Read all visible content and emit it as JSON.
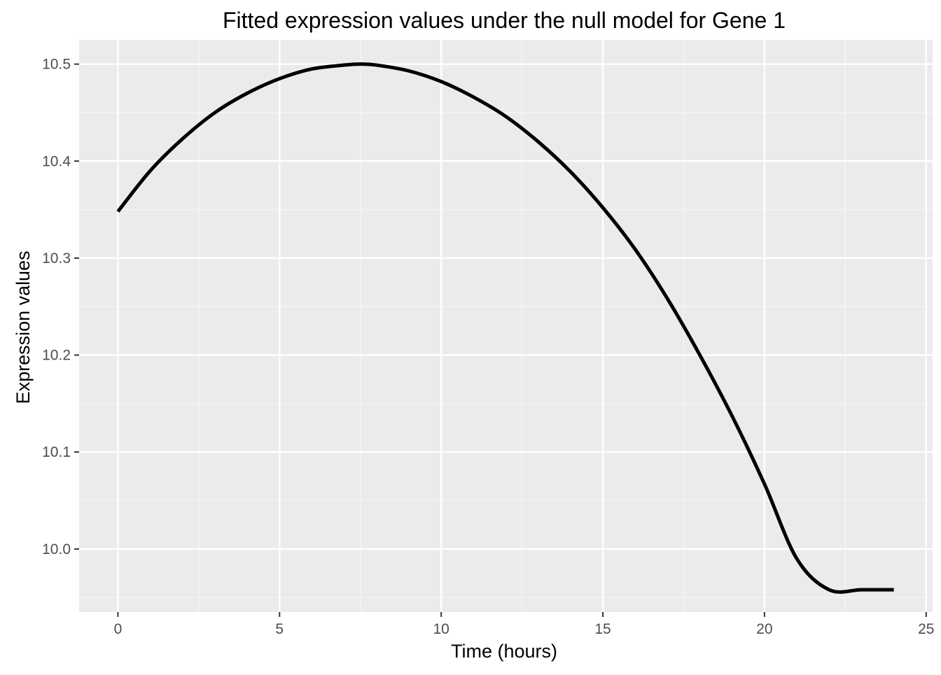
{
  "chart_data": {
    "type": "line",
    "title": "Fitted expression values under the null model for Gene 1",
    "xlabel": "Time (hours)",
    "ylabel": "Expression values",
    "xlim": [
      -1.2,
      25.2
    ],
    "ylim": [
      9.935,
      10.525
    ],
    "x_ticks": [
      0,
      5,
      10,
      15,
      20,
      25
    ],
    "x_tick_labels": [
      "0",
      "5",
      "10",
      "15",
      "20",
      "25"
    ],
    "y_ticks": [
      10.0,
      10.1,
      10.2,
      10.3,
      10.4,
      10.5
    ],
    "y_tick_labels": [
      "10.0",
      "10.1",
      "10.2",
      "10.3",
      "10.4",
      "10.5"
    ],
    "grid": true,
    "legend": "none",
    "series": [
      {
        "x": [
          0,
          1,
          2,
          3,
          4,
          5,
          6,
          7,
          7.5,
          8,
          9,
          10,
          11,
          12,
          13,
          14,
          15,
          16,
          17,
          18,
          19,
          20,
          21,
          22,
          23,
          24
        ],
        "y": [
          10.348,
          10.39,
          10.423,
          10.45,
          10.47,
          10.485,
          10.495,
          10.499,
          10.5,
          10.499,
          10.493,
          10.482,
          10.466,
          10.446,
          10.42,
          10.389,
          10.352,
          10.309,
          10.258,
          10.2,
          10.137,
          10.067,
          9.99,
          9.958,
          9.958,
          9.958
        ]
      }
    ]
  },
  "colors": {
    "panel_background": "#ebebeb",
    "grid_major": "#ffffff",
    "grid_minor": "#f5f5f5",
    "line": "#000000",
    "tick_text": "#4d4d4d",
    "axis_text": "#000000"
  }
}
